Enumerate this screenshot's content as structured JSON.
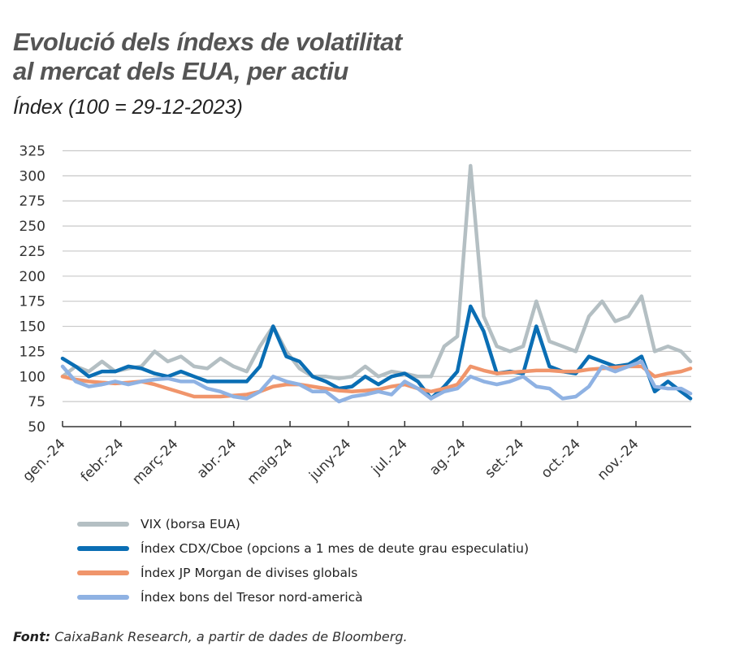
{
  "title_line1": "Evolució dels índexs de volatilitat",
  "title_line2": "al mercat dels EUA, per actiu",
  "subtitle": "Índex (100 = 29-12-2023)",
  "source_label": "Font:",
  "source_text": " CaixaBank Research, a partir de dades de Bloomberg.",
  "chart_data": {
    "type": "line",
    "title": "Evolució dels índexs de volatilitat al mercat dels EUA, per actiu",
    "ylabel": "Índex (100 = 29-12-2023)",
    "ylim": [
      50,
      325
    ],
    "yticks": [
      50,
      75,
      100,
      125,
      150,
      175,
      200,
      225,
      250,
      275,
      300,
      325
    ],
    "grid": true,
    "legend_position": "bottom",
    "xticks": [
      {
        "date": "2024-01-01",
        "label": "gen.-24"
      },
      {
        "date": "2024-02-01",
        "label": "febr.-24"
      },
      {
        "date": "2024-03-01",
        "label": "març-24"
      },
      {
        "date": "2024-04-01",
        "label": "abr.-24"
      },
      {
        "date": "2024-05-01",
        "label": "maig-24"
      },
      {
        "date": "2024-06-01",
        "label": "juny-24"
      },
      {
        "date": "2024-07-01",
        "label": "jul.-24"
      },
      {
        "date": "2024-08-01",
        "label": "ag.-24"
      },
      {
        "date": "2024-09-01",
        "label": "set.-24"
      },
      {
        "date": "2024-10-01",
        "label": "oct.-24"
      },
      {
        "date": "2024-11-01",
        "label": "nov.-24"
      }
    ],
    "x": [
      "2024-01-01",
      "2024-01-08",
      "2024-01-15",
      "2024-01-22",
      "2024-01-29",
      "2024-02-05",
      "2024-02-12",
      "2024-02-19",
      "2024-02-26",
      "2024-03-04",
      "2024-03-11",
      "2024-03-18",
      "2024-03-25",
      "2024-04-01",
      "2024-04-08",
      "2024-04-15",
      "2024-04-22",
      "2024-04-29",
      "2024-05-06",
      "2024-05-13",
      "2024-05-20",
      "2024-05-27",
      "2024-06-03",
      "2024-06-10",
      "2024-06-17",
      "2024-06-24",
      "2024-07-01",
      "2024-07-08",
      "2024-07-15",
      "2024-07-22",
      "2024-07-29",
      "2024-08-05",
      "2024-08-12",
      "2024-08-19",
      "2024-08-26",
      "2024-09-02",
      "2024-09-09",
      "2024-09-16",
      "2024-09-23",
      "2024-09-30",
      "2024-10-07",
      "2024-10-14",
      "2024-10-21",
      "2024-10-28",
      "2024-11-04",
      "2024-11-11",
      "2024-11-18",
      "2024-11-25",
      "2024-11-30"
    ],
    "series": [
      {
        "name": "VIX (borsa EUA)",
        "color": "#b4bfc3",
        "values": [
          100,
          110,
          105,
          115,
          105,
          108,
          110,
          125,
          115,
          120,
          110,
          108,
          118,
          110,
          105,
          130,
          150,
          125,
          108,
          100,
          100,
          98,
          100,
          110,
          100,
          105,
          103,
          100,
          100,
          130,
          140,
          310,
          160,
          130,
          125,
          130,
          175,
          135,
          130,
          125,
          160,
          175,
          155,
          160,
          180,
          125,
          130,
          125,
          115
        ]
      },
      {
        "name": "Índex CDX/Cboe (opcions a 1 mes de deute grau especulatiu)",
        "color": "#0a6eb4",
        "values": [
          118,
          110,
          100,
          105,
          105,
          110,
          108,
          103,
          100,
          105,
          100,
          95,
          95,
          95,
          95,
          110,
          150,
          120,
          115,
          100,
          95,
          88,
          90,
          100,
          92,
          100,
          103,
          95,
          78,
          90,
          105,
          170,
          145,
          103,
          105,
          103,
          150,
          110,
          105,
          103,
          120,
          115,
          110,
          112,
          120,
          85,
          95,
          85,
          78
        ]
      },
      {
        "name": "Índex JP Morgan de divises globals",
        "color": "#f0956b",
        "values": [
          100,
          97,
          95,
          94,
          93,
          94,
          95,
          92,
          88,
          84,
          80,
          80,
          80,
          81,
          82,
          85,
          90,
          92,
          92,
          90,
          88,
          86,
          85,
          86,
          87,
          90,
          92,
          88,
          85,
          88,
          92,
          110,
          106,
          103,
          104,
          105,
          106,
          106,
          105,
          105,
          107,
          108,
          109,
          110,
          110,
          100,
          103,
          105,
          108
        ]
      },
      {
        "name": "Índex bons del Tresor nord-americà",
        "color": "#8fb2e3",
        "values": [
          110,
          95,
          90,
          92,
          95,
          92,
          95,
          97,
          98,
          95,
          95,
          88,
          85,
          80,
          78,
          85,
          100,
          95,
          92,
          85,
          85,
          75,
          80,
          82,
          85,
          82,
          95,
          88,
          78,
          85,
          88,
          100,
          95,
          92,
          95,
          100,
          90,
          88,
          78,
          80,
          90,
          110,
          105,
          110,
          115,
          90,
          88,
          88,
          83
        ]
      }
    ]
  }
}
